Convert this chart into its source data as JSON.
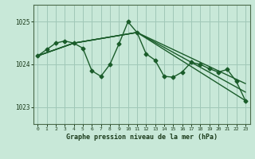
{
  "xlabel": "Graphe pression niveau de la mer (hPa)",
  "xlim": [
    -0.5,
    23.5
  ],
  "ylim": [
    1022.6,
    1025.4
  ],
  "yticks": [
    1023,
    1024,
    1025
  ],
  "xticks": [
    0,
    1,
    2,
    3,
    4,
    5,
    6,
    7,
    8,
    9,
    10,
    11,
    12,
    13,
    14,
    15,
    16,
    17,
    18,
    19,
    20,
    21,
    22,
    23
  ],
  "bg_color": "#c8e8d8",
  "grid_color": "#a0c8b8",
  "line_color": "#1a5c2a",
  "series": [
    {
      "x": [
        0,
        1,
        2,
        3,
        4,
        5,
        6,
        7,
        8,
        9,
        10,
        11,
        12,
        13,
        14,
        15,
        16,
        17,
        18,
        19,
        20,
        21,
        22,
        23
      ],
      "y": [
        1024.2,
        1024.35,
        1024.5,
        1024.55,
        1024.5,
        1024.38,
        1023.85,
        1023.72,
        1024.0,
        1024.48,
        1025.0,
        1024.75,
        1024.25,
        1024.1,
        1023.72,
        1023.7,
        1023.82,
        1024.05,
        1024.0,
        1023.9,
        1023.82,
        1023.88,
        1023.6,
        1023.15
      ],
      "marker": "D",
      "markersize": 2.5,
      "linewidth": 1.0,
      "has_marker": true
    },
    {
      "x": [
        0,
        4,
        11,
        23
      ],
      "y": [
        1024.2,
        1024.5,
        1024.75,
        1023.15
      ],
      "marker": null,
      "markersize": 0,
      "linewidth": 1.0,
      "has_marker": false
    },
    {
      "x": [
        0,
        4,
        11,
        23
      ],
      "y": [
        1024.2,
        1024.5,
        1024.75,
        1023.35
      ],
      "marker": null,
      "markersize": 0,
      "linewidth": 1.0,
      "has_marker": false
    },
    {
      "x": [
        0,
        4,
        11,
        23
      ],
      "y": [
        1024.2,
        1024.5,
        1024.75,
        1023.55
      ],
      "marker": null,
      "markersize": 0,
      "linewidth": 1.0,
      "has_marker": false
    }
  ]
}
